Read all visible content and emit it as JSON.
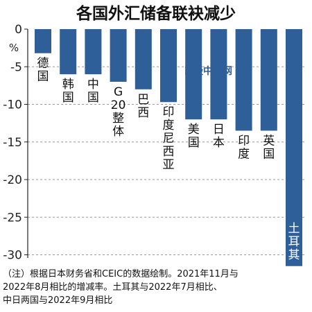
{
  "chart_data": {
    "type": "bar",
    "title": "各国外汇储备联袂减少",
    "unit": "%",
    "categories": [
      "德国",
      "韩国",
      "中国",
      "G20整体",
      "巴西",
      "印度尼西亚",
      "美国",
      "日本",
      "印度",
      "英国",
      "土耳其"
    ],
    "values": [
      -3.2,
      -6.0,
      -6.0,
      -7.0,
      -8.0,
      -9.7,
      -12.0,
      -12.0,
      -13.5,
      -13.5,
      -31.5
    ],
    "ylim": [
      -30.5,
      0
    ],
    "yticks": [
      0,
      -5,
      -10,
      -15,
      -20,
      -25,
      -30
    ],
    "bar_color": "#2f5f98",
    "grid": "dashed horizontal",
    "watermark": "日经中文网",
    "footnote": [
      "（注）根据日本财务省和CEIC的数据绘制。2021年11月与",
      "2022年8月相比的增减率。土耳其与2022年7月相比、",
      "中日两国与2022年9月相比"
    ]
  }
}
